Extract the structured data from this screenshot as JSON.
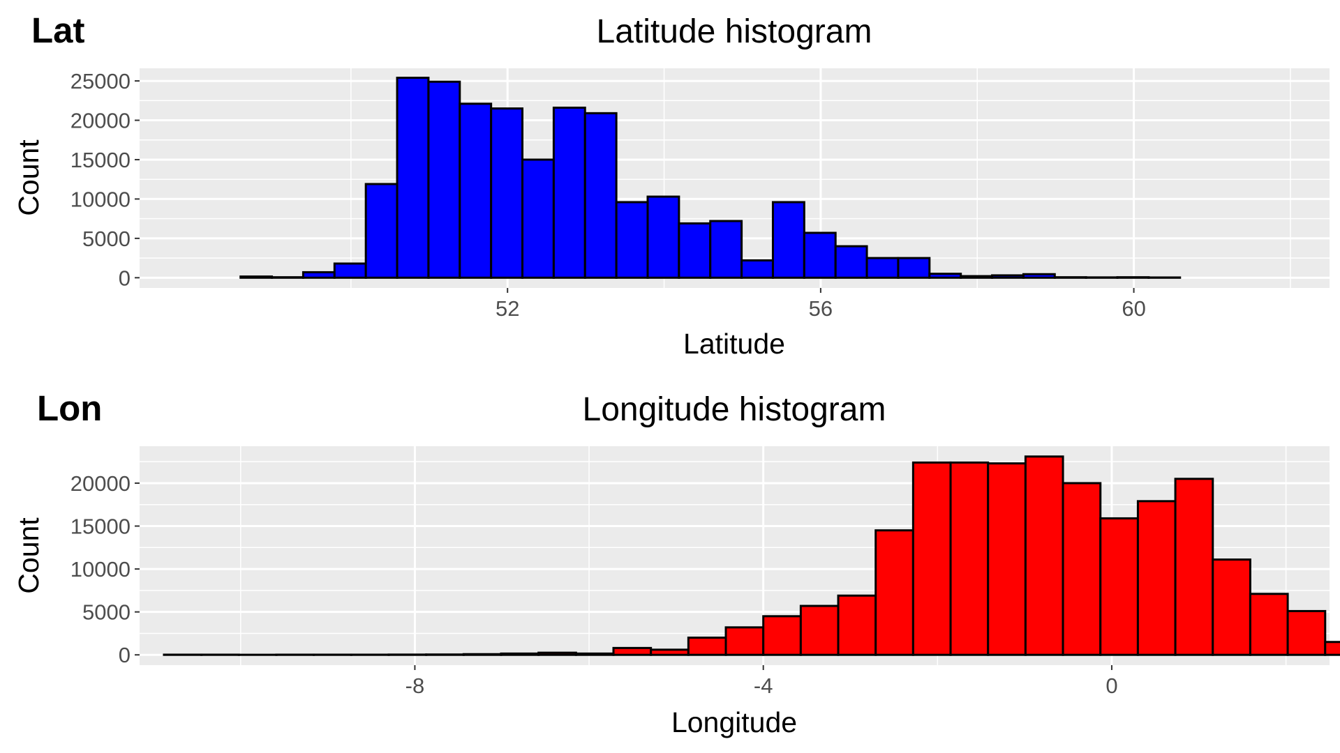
{
  "chart_data": [
    {
      "type": "bar",
      "tag": "Lat",
      "title": "Latitude histogram",
      "xlabel": "Latitude",
      "ylabel": "Count",
      "xlim": [
        47.3,
        62.5
      ],
      "ylim": [
        -1300,
        26600
      ],
      "grid": true,
      "legend": "none",
      "fill": "#0000ff",
      "stroke": "#000000",
      "panel_bg": "#ebebeb",
      "grid_color": "#ffffff",
      "x_ticks": [
        52,
        56,
        60
      ],
      "x_tick_labels": [
        "52",
        "56",
        "60"
      ],
      "y_ticks": [
        0,
        5000,
        10000,
        15000,
        20000,
        25000
      ],
      "y_tick_labels": [
        "0",
        "5000",
        "10000",
        "15000",
        "20000",
        "25000"
      ],
      "bin_start": 48.59,
      "bin_width": 0.4,
      "values": [
        150,
        60,
        700,
        1800,
        11900,
        25400,
        24900,
        22100,
        21500,
        15000,
        21600,
        20900,
        9600,
        10300,
        6900,
        7200,
        2200,
        9600,
        5700,
        4000,
        2500,
        2500,
        500,
        200,
        300,
        450,
        60,
        40,
        60,
        30
      ]
    },
    {
      "type": "bar",
      "tag": "Lon",
      "title": "Longitude histogram",
      "xlabel": "Longitude",
      "ylabel": "Count",
      "xlim": [
        -11.16,
        2.5
      ],
      "ylim": [
        -1200,
        24300
      ],
      "grid": true,
      "legend": "none",
      "fill": "#ff0000",
      "stroke": "#000000",
      "panel_bg": "#ebebeb",
      "grid_color": "#ffffff",
      "x_ticks": [
        -8,
        -4,
        0
      ],
      "x_tick_labels": [
        "-8",
        "-4",
        "0"
      ],
      "y_ticks": [
        0,
        5000,
        10000,
        15000,
        20000
      ],
      "y_tick_labels": [
        "0",
        "5000",
        "10000",
        "15000",
        "20000"
      ],
      "bin_start": -10.88,
      "bin_width": 0.43,
      "values": [
        20,
        20,
        10,
        20,
        20,
        20,
        30,
        40,
        80,
        150,
        250,
        150,
        800,
        600,
        2000,
        3200,
        4500,
        5700,
        6900,
        14500,
        22400,
        22400,
        22300,
        23100,
        20000,
        15900,
        17900,
        20500,
        11100,
        7100,
        5100,
        1500
      ]
    }
  ]
}
